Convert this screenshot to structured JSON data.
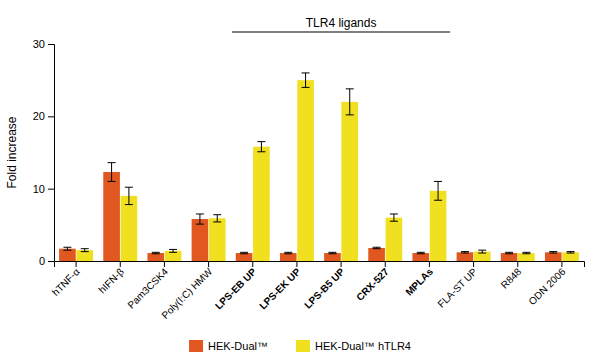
{
  "chart_data": {
    "type": "bar",
    "categories": [
      "hTNF-α",
      "hIFN-β",
      "Pam3CSK4",
      "Poly(I:C) HMW",
      "LPS-EB UP",
      "LPS-EK UP",
      "LPS-B5 UP",
      "CRX-527",
      "MPLAs",
      "FLA-ST UP",
      "R848",
      "ODN 2006"
    ],
    "series": [
      {
        "name": "HEK-Dual™",
        "color": "#e05820",
        "values": [
          1.7,
          12.3,
          1.1,
          5.8,
          1.1,
          1.1,
          1.1,
          1.8,
          1.1,
          1.2,
          1.1,
          1.2
        ],
        "errors": [
          0.2,
          1.3,
          0.1,
          0.7,
          0.1,
          0.1,
          0.1,
          0.1,
          0.1,
          0.1,
          0.1,
          0.1
        ]
      },
      {
        "name": "HEK-Dual™ hTLR4",
        "color": "#f0e020",
        "values": [
          1.5,
          9.0,
          1.4,
          5.9,
          15.8,
          25.0,
          22.0,
          6.0,
          9.7,
          1.3,
          1.1,
          1.2
        ],
        "errors": [
          0.2,
          1.2,
          0.2,
          0.5,
          0.7,
          1.0,
          1.8,
          0.5,
          1.3,
          0.2,
          0.1,
          0.1
        ]
      }
    ],
    "ylabel": "Fold increase",
    "ylim": [
      0,
      30
    ],
    "yticks": [
      0,
      10,
      20,
      30
    ],
    "annotations": [
      {
        "text": "TLR4 ligands",
        "from": "LPS-EB UP",
        "to": "MPLAs"
      }
    ],
    "legend": "bottom",
    "grid": false
  }
}
